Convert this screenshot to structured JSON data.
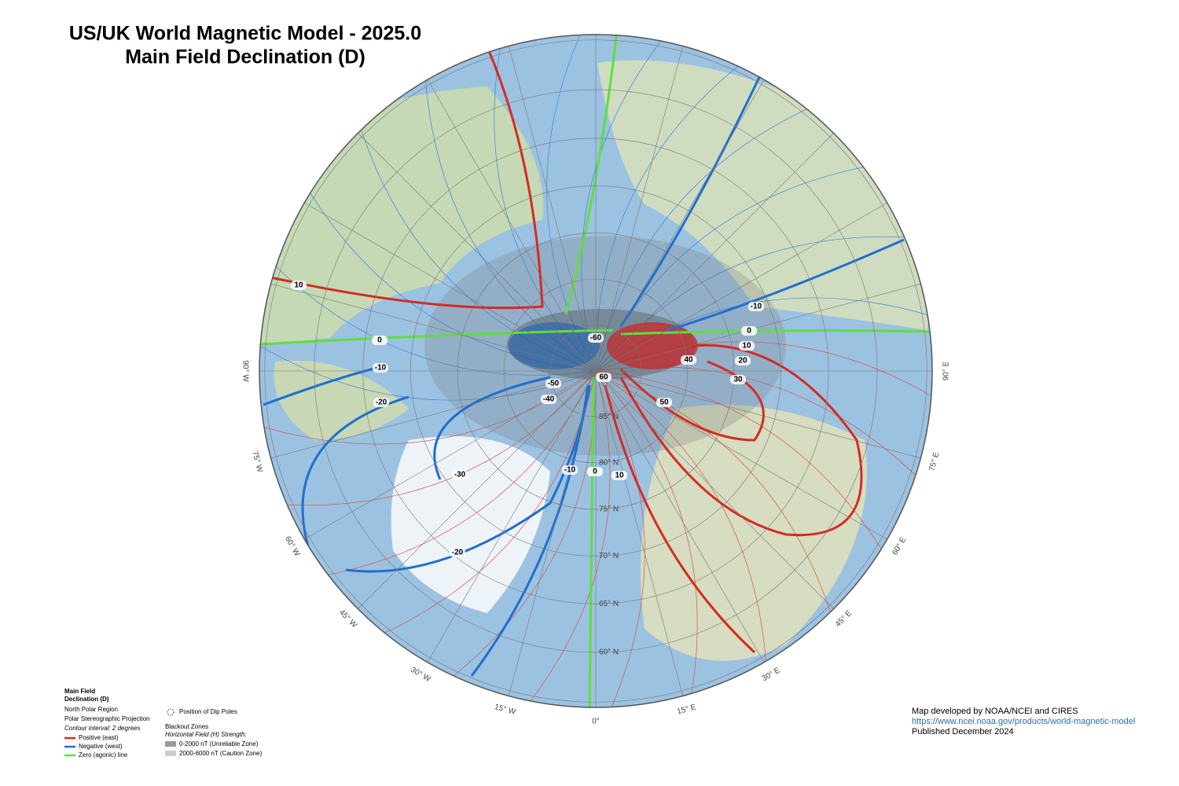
{
  "header": {
    "title": "US/UK World Magnetic Model - 2025.0",
    "subtitle": "Main Field Declination (D)"
  },
  "map": {
    "longitude_labels": [
      "90° W",
      "75° W",
      "60° W",
      "45° W",
      "30° W",
      "15° W",
      "0°",
      "15° E",
      "30° E",
      "45° E",
      "60° E",
      "75° E",
      "90° E"
    ],
    "latitude_labels": [
      "85° N",
      "80° N",
      "75° N",
      "70° N",
      "65° N",
      "60° N"
    ],
    "contour_labels": [
      "10",
      "0",
      "-10",
      "-20",
      "-50",
      "-40",
      "-30",
      "-20",
      "-10",
      "0",
      "10",
      "-60",
      "60",
      "40",
      "50",
      "10",
      "20",
      "30",
      "-10",
      "0"
    ]
  },
  "legend": {
    "title_line1": "Main Field",
    "title_line2": "Declination (D)",
    "region": "North Polar Region",
    "projection": "Polar Stereographic Projection",
    "interval": "Contour interval: 2 degrees",
    "positive": "Positive (east)",
    "negative": "Negative (west)",
    "zero": "Zero (agonic) line",
    "dip_poles": "Position of Dip Poles",
    "blackout_title": "Blackout Zones",
    "blackout_subtitle": "Horizontal Field (H) Strength:",
    "unreliable": "0-2000 nT (Unreliable Zone)",
    "caution": "2000-6000 nT (Caution Zone)"
  },
  "credits": {
    "developer": "Map developed by NOAA/NCEI and CIRES",
    "url": "https://www.ncei.noaa.gov/products/world-magnetic-model",
    "published": "Published December 2024"
  }
}
